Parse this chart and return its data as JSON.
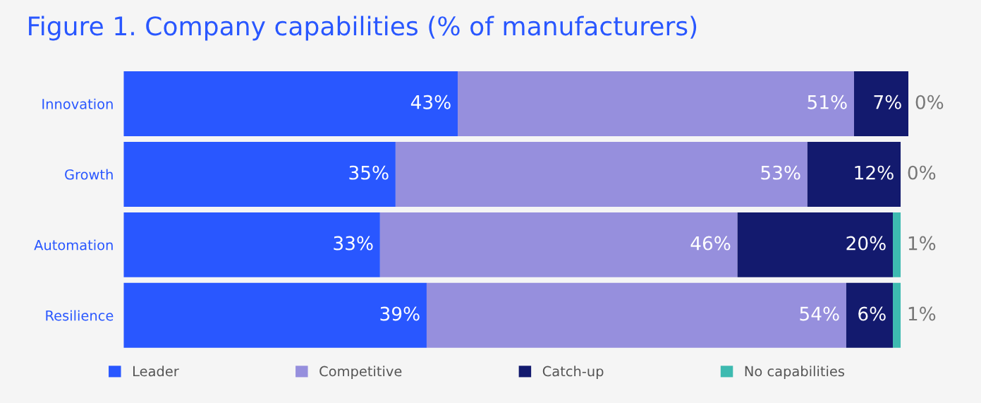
{
  "chart_data": {
    "type": "bar",
    "orientation": "horizontal",
    "stacked": true,
    "title": "Figure 1. Company capabilities (% of manufacturers)",
    "categories": [
      "Innovation",
      "Growth",
      "Automation",
      "Resilience"
    ],
    "series": [
      {
        "name": "Leader",
        "color": "#2957ff",
        "values": [
          43,
          35,
          33,
          39
        ],
        "value_labels": [
          "43%",
          "35%",
          "33%",
          "39%"
        ]
      },
      {
        "name": "Competitive",
        "color": "#968fdd",
        "values": [
          51,
          53,
          46,
          54
        ],
        "value_labels": [
          "51%",
          "53%",
          "46%",
          "54%"
        ]
      },
      {
        "name": "Catch-up",
        "color": "#131a6e",
        "values": [
          7,
          12,
          20,
          6
        ],
        "value_labels": [
          "7%",
          "12%",
          "20%",
          "6%"
        ]
      },
      {
        "name": "No capabilities",
        "color": "#3dbab0",
        "values": [
          0,
          0,
          1,
          1
        ],
        "value_labels": [
          "0%",
          "0%",
          "1%",
          "1%"
        ]
      }
    ],
    "legend": "bottom",
    "grid": false
  }
}
